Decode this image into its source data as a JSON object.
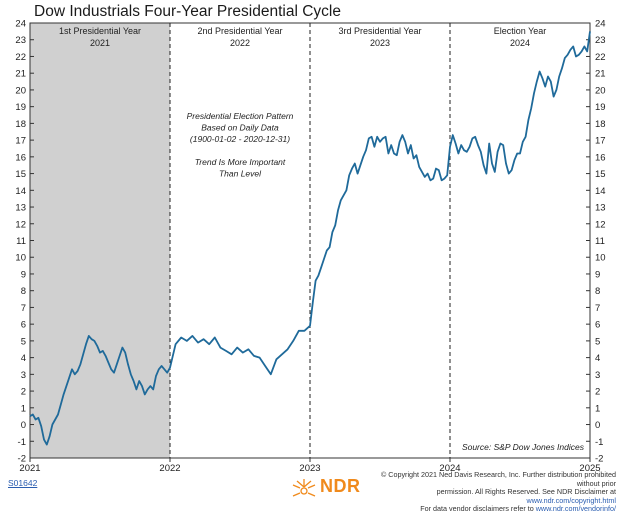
{
  "chart_data": {
    "type": "line",
    "title": "Dow Industrials Four-Year Presidential Cycle",
    "xlabel": "",
    "ylabel": "",
    "xlim": [
      2021,
      2025
    ],
    "ylim": [
      -2,
      24
    ],
    "yticks": [
      -2,
      -1,
      0,
      1,
      2,
      3,
      4,
      5,
      6,
      7,
      8,
      9,
      10,
      11,
      12,
      13,
      14,
      15,
      16,
      17,
      18,
      19,
      20,
      21,
      22,
      23,
      24
    ],
    "xticks": [
      2021,
      2022,
      2023,
      2024,
      2025
    ],
    "grid": false,
    "shaded_region": [
      2021,
      2022
    ],
    "line_color": "#1f6a9a",
    "phases": [
      {
        "name": "1st Presidential Year",
        "year": "2021"
      },
      {
        "name": "2nd Presidential Year",
        "year": "2022"
      },
      {
        "name": "3rd Presidential Year",
        "year": "2023"
      },
      {
        "name": "Election Year",
        "year": "2024"
      }
    ],
    "annotation_lines": [
      "Presidential Election Pattern",
      "Based on Daily Data",
      "(1900-01-02 - 2020-12-31)",
      "",
      "Trend Is More Important",
      "Than Level"
    ],
    "source": "Source:   S&P Dow Jones Indices",
    "series": [
      {
        "x": [
          2021.0,
          2021.02,
          2021.04,
          2021.06,
          2021.08,
          2021.1,
          2021.12,
          2021.14,
          2021.16,
          2021.18,
          2021.2,
          2021.22,
          2021.24,
          2021.26,
          2021.28,
          2021.3,
          2021.32,
          2021.34,
          2021.36,
          2021.38,
          2021.4,
          2021.42,
          2021.44,
          2021.46,
          2021.48,
          2021.5,
          2021.52,
          2021.54,
          2021.56,
          2021.58,
          2021.6,
          2021.62,
          2021.64,
          2021.66,
          2021.68,
          2021.7,
          2021.72,
          2021.74,
          2021.76,
          2021.78,
          2021.8,
          2021.82,
          2021.84,
          2021.86,
          2021.88,
          2021.9,
          2021.92,
          2021.94,
          2021.96,
          2021.98,
          2022.0,
          2022.04,
          2022.08,
          2022.12,
          2022.16,
          2022.2,
          2022.24,
          2022.28,
          2022.32,
          2022.36,
          2022.4,
          2022.44,
          2022.48,
          2022.52,
          2022.56,
          2022.6,
          2022.64,
          2022.68,
          2022.72,
          2022.76,
          2022.8,
          2022.84,
          2022.88,
          2022.92,
          2022.96,
          2023.0,
          2023.02,
          2023.04,
          2023.06,
          2023.08,
          2023.1,
          2023.12,
          2023.14,
          2023.16,
          2023.18,
          2023.2,
          2023.22,
          2023.24,
          2023.26,
          2023.28,
          2023.3,
          2023.32,
          2023.34,
          2023.36,
          2023.38,
          2023.4,
          2023.42,
          2023.44,
          2023.46,
          2023.48,
          2023.5,
          2023.52,
          2023.54,
          2023.56,
          2023.58,
          2023.6,
          2023.62,
          2023.64,
          2023.66,
          2023.68,
          2023.7,
          2023.72,
          2023.74,
          2023.76,
          2023.78,
          2023.8,
          2023.82,
          2023.84,
          2023.86,
          2023.88,
          2023.9,
          2023.92,
          2023.94,
          2023.96,
          2023.98,
          2024.0,
          2024.02,
          2024.04,
          2024.06,
          2024.08,
          2024.1,
          2024.12,
          2024.14,
          2024.16,
          2024.18,
          2024.2,
          2024.22,
          2024.24,
          2024.26,
          2024.28,
          2024.3,
          2024.32,
          2024.34,
          2024.36,
          2024.38,
          2024.4,
          2024.42,
          2024.44,
          2024.46,
          2024.48,
          2024.5,
          2024.52,
          2024.54,
          2024.56,
          2024.58,
          2024.6,
          2024.62,
          2024.64,
          2024.66,
          2024.68,
          2024.7,
          2024.72,
          2024.74,
          2024.76,
          2024.78,
          2024.8,
          2024.82,
          2024.84,
          2024.86,
          2024.88,
          2024.9,
          2024.92,
          2024.94,
          2024.96,
          2024.98,
          2025.0
        ],
        "y": [
          0.5,
          0.6,
          0.3,
          0.4,
          -0.1,
          -0.9,
          -1.2,
          -0.7,
          0.0,
          0.3,
          0.6,
          1.2,
          1.8,
          2.3,
          2.8,
          3.3,
          3.0,
          3.2,
          3.6,
          4.2,
          4.8,
          5.3,
          5.1,
          5.0,
          4.7,
          4.3,
          4.4,
          4.1,
          3.7,
          3.3,
          3.1,
          3.6,
          4.1,
          4.6,
          4.3,
          3.6,
          3.0,
          2.6,
          2.1,
          2.6,
          2.3,
          1.8,
          2.1,
          2.3,
          2.1,
          2.9,
          3.3,
          3.5,
          3.3,
          3.1,
          3.4,
          4.8,
          5.2,
          5.0,
          5.3,
          4.9,
          5.1,
          4.8,
          5.2,
          4.6,
          4.4,
          4.2,
          4.6,
          4.3,
          4.5,
          4.1,
          4.0,
          3.5,
          3.0,
          3.9,
          4.2,
          4.5,
          5.0,
          5.6,
          5.6,
          5.9,
          7.3,
          8.6,
          8.9,
          9.4,
          9.9,
          10.4,
          10.6,
          11.5,
          11.9,
          12.8,
          13.4,
          13.7,
          14.0,
          14.9,
          15.3,
          15.6,
          15.0,
          15.5,
          16.0,
          16.4,
          17.1,
          17.2,
          16.6,
          17.2,
          16.9,
          17.1,
          17.2,
          16.2,
          16.7,
          16.2,
          16.1,
          16.9,
          17.3,
          16.9,
          16.2,
          16.7,
          15.9,
          16.1,
          15.4,
          15.1,
          14.8,
          15.0,
          14.6,
          14.7,
          15.3,
          15.2,
          14.6,
          14.7,
          14.9,
          16.6,
          17.3,
          16.8,
          16.2,
          16.7,
          16.4,
          16.3,
          16.6,
          17.1,
          17.2,
          16.7,
          16.3,
          15.5,
          15.0,
          16.8,
          15.6,
          15.1,
          16.3,
          16.8,
          16.7,
          15.6,
          15.0,
          15.2,
          15.8,
          16.2,
          16.2,
          16.9,
          17.2,
          18.2,
          18.9,
          19.8,
          20.5,
          21.1,
          20.7,
          20.2,
          20.8,
          20.5,
          19.6,
          20.0,
          20.8,
          21.3,
          21.9,
          22.1,
          22.4,
          22.6,
          22.0,
          22.1,
          22.3,
          22.6,
          22.3,
          23.5
        ]
      }
    ]
  },
  "footer": {
    "code": "S01642",
    "logo_text": "NDR",
    "copyright_line1": "© Copyright 2021 Ned Davis Research, Inc. Further distribution prohibited without prior",
    "copyright_line2": "permission. All Rights Reserved. See NDR Disclaimer at",
    "copyright_link1": "www.ndr.com/copyright.html",
    "copyright_line3": "For data vendor disclaimers refer to",
    "copyright_link2": "www.ndr.com/vendorinfo/"
  }
}
